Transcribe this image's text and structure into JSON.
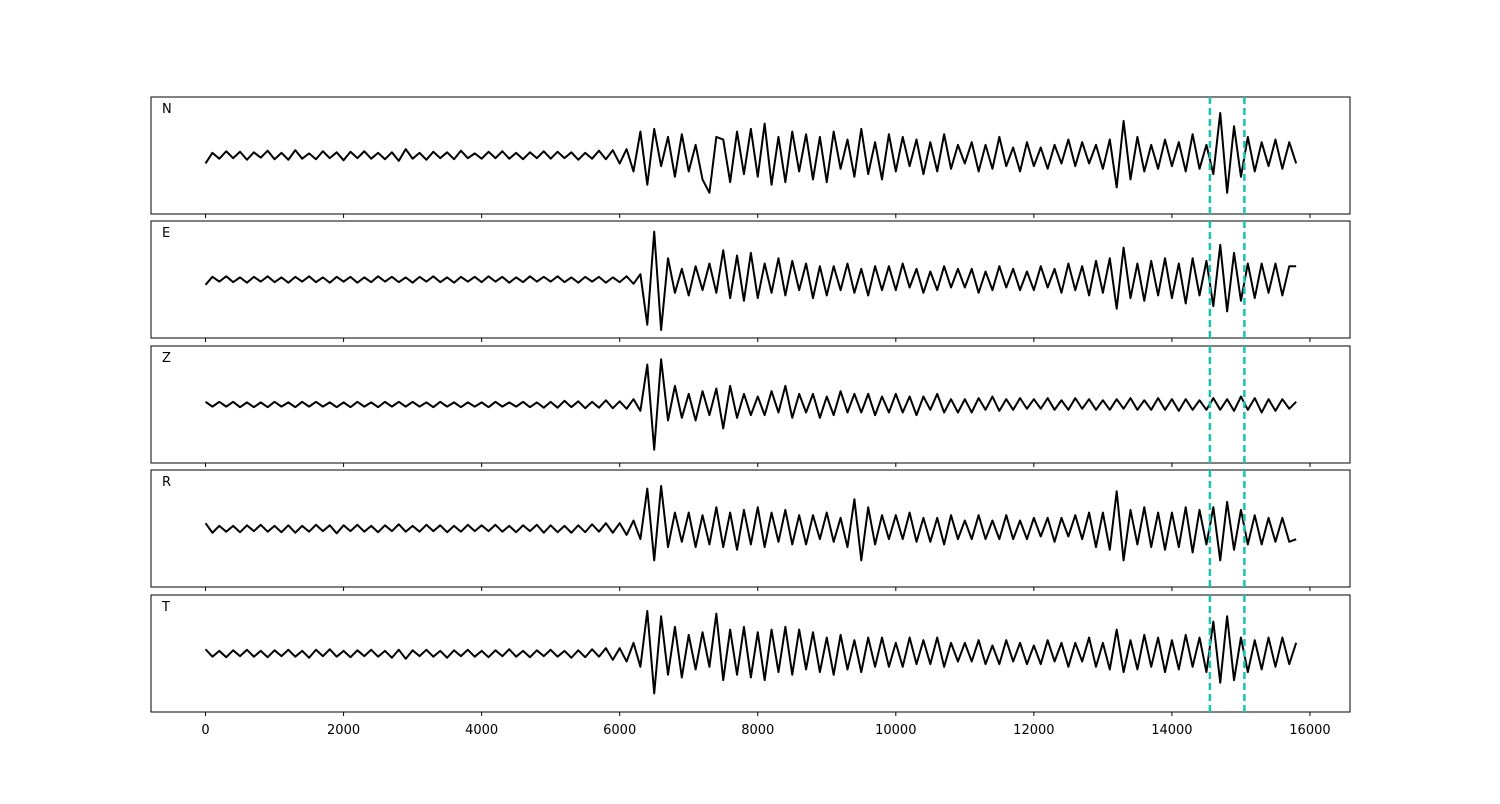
{
  "chart_data": {
    "type": "line",
    "x": [
      0,
      100,
      200,
      300,
      400,
      500,
      600,
      700,
      800,
      900,
      1000,
      1100,
      1200,
      1300,
      1400,
      1500,
      1600,
      1700,
      1800,
      1900,
      2000,
      2100,
      2200,
      2300,
      2400,
      2500,
      2600,
      2700,
      2800,
      2900,
      3000,
      3100,
      3200,
      3300,
      3400,
      3500,
      3600,
      3700,
      3800,
      3900,
      4000,
      4100,
      4200,
      4300,
      4400,
      4500,
      4600,
      4700,
      4800,
      4900,
      5000,
      5100,
      5200,
      5300,
      5400,
      5500,
      5600,
      5700,
      5800,
      5900,
      6000,
      6100,
      6200,
      6300,
      6400,
      6500,
      6600,
      6700,
      6800,
      6900,
      7000,
      7100,
      7200,
      7300,
      7400,
      7500,
      7600,
      7700,
      7800,
      7900,
      8000,
      8100,
      8200,
      8300,
      8400,
      8500,
      8600,
      8700,
      8800,
      8900,
      9000,
      9100,
      9200,
      9300,
      9400,
      9500,
      9600,
      9700,
      9800,
      9900,
      10000,
      10100,
      10200,
      10300,
      10400,
      10500,
      10600,
      10700,
      10800,
      10900,
      11000,
      11100,
      11200,
      11300,
      11400,
      11500,
      11600,
      11700,
      11800,
      11900,
      12000,
      12100,
      12200,
      12300,
      12400,
      12500,
      12600,
      12700,
      12800,
      12900,
      13000,
      13100,
      13200,
      13300,
      13400,
      13500,
      13600,
      13700,
      13800,
      13900,
      14000,
      14100,
      14200,
      14300,
      14400,
      14500,
      14600,
      14700,
      14800,
      14900,
      15000,
      15100,
      15200,
      15300,
      15400,
      15500,
      15600,
      15700,
      15800
    ],
    "series": [
      {
        "name": "N",
        "color": "#000000",
        "values": [
          -0.15,
          0.05,
          -0.06,
          0.08,
          -0.05,
          0.07,
          -0.08,
          0.06,
          -0.04,
          0.09,
          -0.07,
          0.05,
          -0.08,
          0.1,
          -0.06,
          0.04,
          -0.07,
          0.08,
          -0.05,
          0.06,
          -0.09,
          0.07,
          -0.05,
          0.08,
          -0.06,
          0.05,
          -0.07,
          0.06,
          -0.1,
          0.12,
          -0.06,
          0.05,
          -0.08,
          0.07,
          -0.05,
          0.06,
          -0.07,
          0.09,
          -0.05,
          0.04,
          -0.06,
          0.07,
          -0.05,
          0.08,
          -0.06,
          0.05,
          -0.07,
          0.06,
          -0.05,
          0.08,
          -0.06,
          0.07,
          -0.05,
          0.06,
          -0.08,
          0.05,
          -0.06,
          0.09,
          -0.07,
          0.1,
          -0.15,
          0.12,
          -0.3,
          0.45,
          -0.55,
          0.5,
          -0.2,
          0.35,
          -0.4,
          0.4,
          -0.3,
          0.2,
          -0.45,
          -0.7,
          0.35,
          0.3,
          -0.5,
          0.45,
          -0.35,
          0.5,
          -0.4,
          0.6,
          -0.55,
          0.35,
          -0.5,
          0.45,
          -0.3,
          0.4,
          -0.45,
          0.35,
          -0.5,
          0.45,
          -0.25,
          0.3,
          -0.4,
          0.5,
          -0.35,
          0.25,
          -0.45,
          0.4,
          -0.3,
          0.35,
          -0.2,
          0.3,
          -0.35,
          0.25,
          -0.3,
          0.4,
          -0.25,
          0.2,
          -0.15,
          0.25,
          -0.3,
          0.2,
          -0.25,
          0.35,
          -0.2,
          0.15,
          -0.3,
          0.25,
          -0.2,
          0.15,
          -0.25,
          0.2,
          -0.15,
          0.3,
          -0.2,
          0.25,
          -0.15,
          0.2,
          -0.25,
          0.3,
          -0.6,
          0.65,
          -0.45,
          0.35,
          -0.3,
          0.2,
          -0.25,
          0.3,
          -0.2,
          0.25,
          -0.3,
          0.4,
          -0.25,
          0.2,
          -0.35,
          0.8,
          -0.7,
          0.55,
          -0.4,
          0.35,
          -0.3,
          0.25,
          -0.2,
          0.3,
          -0.25,
          0.25,
          -0.15
        ]
      },
      {
        "name": "E",
        "color": "#000000",
        "values": [
          -0.1,
          0.05,
          -0.04,
          0.06,
          -0.05,
          0.04,
          -0.06,
          0.05,
          -0.04,
          0.06,
          -0.05,
          0.04,
          -0.06,
          0.05,
          -0.04,
          0.06,
          -0.05,
          0.04,
          -0.06,
          0.05,
          -0.04,
          0.05,
          -0.06,
          0.04,
          -0.05,
          0.06,
          -0.04,
          0.05,
          -0.05,
          0.04,
          -0.06,
          0.05,
          -0.04,
          0.06,
          -0.05,
          0.04,
          -0.06,
          0.05,
          -0.04,
          0.05,
          -0.05,
          0.06,
          -0.04,
          0.05,
          -0.06,
          0.04,
          -0.05,
          0.06,
          -0.04,
          0.05,
          -0.04,
          0.06,
          -0.05,
          0.04,
          -0.06,
          0.05,
          -0.04,
          0.05,
          -0.06,
          0.04,
          -0.05,
          0.06,
          -0.08,
          0.1,
          -0.85,
          0.9,
          -0.95,
          0.4,
          -0.25,
          0.2,
          -0.3,
          0.25,
          -0.2,
          0.3,
          -0.25,
          0.55,
          -0.35,
          0.45,
          -0.4,
          0.5,
          -0.35,
          0.3,
          -0.25,
          0.4,
          -0.3,
          0.35,
          -0.2,
          0.3,
          -0.35,
          0.25,
          -0.3,
          0.25,
          -0.2,
          0.3,
          -0.25,
          0.2,
          -0.3,
          0.25,
          -0.2,
          0.25,
          -0.2,
          0.3,
          -0.15,
          0.2,
          -0.25,
          0.15,
          -0.2,
          0.25,
          -0.15,
          0.2,
          -0.15,
          0.2,
          -0.25,
          0.15,
          -0.2,
          0.25,
          -0.15,
          0.2,
          -0.2,
          0.15,
          -0.2,
          0.25,
          -0.15,
          0.2,
          -0.25,
          0.3,
          -0.2,
          0.25,
          -0.3,
          0.35,
          -0.25,
          0.4,
          -0.55,
          0.6,
          -0.35,
          0.3,
          -0.4,
          0.35,
          -0.3,
          0.4,
          -0.35,
          0.3,
          -0.45,
          0.4,
          -0.3,
          0.35,
          -0.5,
          0.65,
          -0.6,
          0.5,
          -0.4,
          0.3,
          -0.35,
          0.3,
          -0.25,
          0.3,
          -0.3,
          0.25,
          0.25
        ]
      },
      {
        "name": "Z",
        "color": "#000000",
        "values": [
          0.05,
          -0.04,
          0.05,
          -0.04,
          0.05,
          -0.05,
          0.04,
          -0.05,
          0.04,
          -0.05,
          0.05,
          -0.04,
          0.04,
          -0.05,
          0.05,
          -0.04,
          0.05,
          -0.04,
          0.04,
          -0.05,
          0.04,
          -0.05,
          0.05,
          -0.04,
          0.04,
          -0.05,
          0.05,
          -0.04,
          0.05,
          -0.04,
          0.05,
          -0.04,
          0.04,
          -0.05,
          0.05,
          -0.04,
          0.04,
          -0.05,
          0.04,
          -0.04,
          0.04,
          -0.05,
          0.05,
          -0.04,
          0.04,
          -0.04,
          0.05,
          -0.05,
          0.04,
          -0.06,
          0.05,
          -0.06,
          0.07,
          -0.05,
          0.06,
          -0.07,
          0.05,
          -0.06,
          0.08,
          -0.07,
          0.06,
          -0.08,
          0.1,
          -0.12,
          0.75,
          -0.85,
          0.85,
          -0.3,
          0.35,
          -0.25,
          0.2,
          -0.3,
          0.25,
          -0.2,
          0.3,
          -0.45,
          0.35,
          -0.25,
          0.2,
          -0.2,
          0.15,
          -0.2,
          0.25,
          -0.15,
          0.35,
          -0.25,
          0.2,
          -0.15,
          0.2,
          -0.25,
          0.15,
          -0.2,
          0.25,
          -0.15,
          0.2,
          -0.15,
          0.2,
          -0.2,
          0.15,
          -0.15,
          0.2,
          -0.15,
          0.15,
          -0.2,
          0.15,
          -0.1,
          0.2,
          -0.15,
          0.1,
          -0.15,
          0.1,
          -0.15,
          0.12,
          -0.1,
          0.15,
          -0.12,
          0.1,
          -0.1,
          0.12,
          -0.08,
          0.1,
          -0.08,
          0.12,
          -0.1,
          0.08,
          -0.1,
          0.12,
          -0.08,
          0.1,
          -0.1,
          0.08,
          -0.1,
          0.1,
          -0.08,
          0.12,
          -0.1,
          0.08,
          -0.1,
          0.12,
          -0.1,
          0.1,
          -0.12,
          0.1,
          -0.1,
          0.08,
          -0.1,
          0.12,
          -0.1,
          0.1,
          -0.12,
          0.15,
          -0.1,
          0.12,
          -0.15,
          0.1,
          -0.12,
          0.1,
          -0.08,
          0.05
        ]
      },
      {
        "name": "R",
        "color": "#000000",
        "values": [
          0.1,
          -0.08,
          0.05,
          -0.06,
          0.05,
          -0.07,
          0.06,
          -0.05,
          0.07,
          -0.06,
          0.05,
          -0.07,
          0.06,
          -0.08,
          0.05,
          -0.06,
          0.07,
          -0.05,
          0.06,
          -0.09,
          0.06,
          -0.05,
          0.07,
          -0.06,
          0.05,
          -0.07,
          0.06,
          -0.05,
          0.08,
          -0.06,
          0.05,
          -0.06,
          0.07,
          -0.05,
          0.06,
          -0.07,
          0.05,
          -0.06,
          0.07,
          -0.05,
          0.06,
          -0.05,
          0.07,
          -0.06,
          0.05,
          -0.07,
          0.06,
          -0.05,
          0.07,
          -0.08,
          0.06,
          -0.07,
          0.05,
          -0.08,
          0.06,
          -0.07,
          0.08,
          -0.06,
          0.1,
          -0.08,
          0.1,
          -0.12,
          0.15,
          -0.2,
          0.75,
          -0.6,
          0.8,
          -0.35,
          0.3,
          -0.25,
          0.3,
          -0.35,
          0.25,
          -0.3,
          0.4,
          -0.35,
          0.3,
          -0.4,
          0.35,
          -0.3,
          0.4,
          -0.35,
          0.3,
          -0.25,
          0.35,
          -0.3,
          0.25,
          -0.3,
          0.25,
          -0.2,
          0.3,
          -0.25,
          0.2,
          -0.35,
          0.55,
          -0.6,
          0.4,
          -0.3,
          0.25,
          -0.2,
          0.25,
          -0.2,
          0.3,
          -0.25,
          0.2,
          -0.25,
          0.2,
          -0.3,
          0.25,
          -0.2,
          0.15,
          -0.2,
          0.25,
          -0.2,
          0.15,
          -0.2,
          0.25,
          -0.2,
          0.15,
          -0.2,
          0.2,
          -0.15,
          0.2,
          -0.25,
          0.2,
          -0.15,
          0.25,
          -0.2,
          0.3,
          -0.35,
          0.3,
          -0.4,
          0.7,
          -0.6,
          0.35,
          -0.3,
          0.4,
          -0.35,
          0.3,
          -0.4,
          0.3,
          -0.35,
          0.4,
          -0.45,
          0.35,
          -0.3,
          0.4,
          -0.6,
          0.5,
          -0.4,
          0.35,
          -0.3,
          0.25,
          -0.3,
          0.2,
          -0.25,
          0.2,
          -0.25,
          -0.2
        ]
      },
      {
        "name": "T",
        "color": "#000000",
        "values": [
          0.08,
          -0.06,
          0.05,
          -0.07,
          0.06,
          -0.05,
          0.07,
          -0.06,
          0.05,
          -0.07,
          0.06,
          -0.05,
          0.07,
          -0.06,
          0.05,
          -0.08,
          0.07,
          -0.05,
          0.08,
          -0.06,
          0.05,
          -0.07,
          0.06,
          -0.05,
          0.07,
          -0.06,
          0.05,
          -0.08,
          0.07,
          -0.1,
          0.06,
          -0.05,
          0.07,
          -0.06,
          0.05,
          -0.08,
          0.06,
          -0.05,
          0.07,
          -0.06,
          0.05,
          -0.07,
          0.06,
          -0.05,
          0.08,
          -0.06,
          0.05,
          -0.07,
          0.06,
          -0.05,
          0.07,
          -0.06,
          0.05,
          -0.08,
          0.06,
          -0.07,
          0.08,
          -0.06,
          0.1,
          -0.12,
          0.1,
          -0.15,
          0.2,
          -0.25,
          0.8,
          -0.75,
          0.7,
          -0.4,
          0.5,
          -0.45,
          0.35,
          -0.3,
          0.4,
          -0.25,
          0.75,
          -0.5,
          0.45,
          -0.4,
          0.5,
          -0.45,
          0.4,
          -0.5,
          0.45,
          -0.35,
          0.5,
          -0.4,
          0.45,
          -0.3,
          0.4,
          -0.35,
          0.3,
          -0.4,
          0.35,
          -0.3,
          0.25,
          -0.35,
          0.3,
          -0.25,
          0.3,
          -0.25,
          0.2,
          -0.25,
          0.3,
          -0.2,
          0.25,
          -0.2,
          0.3,
          -0.25,
          0.2,
          -0.15,
          0.2,
          -0.15,
          0.25,
          -0.2,
          0.15,
          -0.2,
          0.25,
          -0.15,
          0.2,
          -0.2,
          0.15,
          -0.2,
          0.25,
          -0.15,
          0.2,
          -0.25,
          0.2,
          -0.15,
          0.3,
          -0.25,
          0.2,
          -0.3,
          0.45,
          -0.35,
          0.25,
          -0.3,
          0.35,
          -0.25,
          0.3,
          -0.35,
          0.25,
          -0.3,
          0.35,
          -0.25,
          0.3,
          -0.35,
          0.6,
          -0.55,
          0.7,
          -0.5,
          0.3,
          -0.35,
          0.25,
          -0.3,
          0.3,
          -0.25,
          0.3,
          -0.2,
          0.2
        ]
      }
    ],
    "xlim": [
      -790,
      16580
    ],
    "ylim": [
      -1.1,
      1.1
    ],
    "xticks": [
      0,
      2000,
      4000,
      6000,
      8000,
      10000,
      12000,
      14000,
      16000
    ],
    "vlines": [
      14550,
      15050
    ],
    "vline_color": "#17c3b2"
  }
}
